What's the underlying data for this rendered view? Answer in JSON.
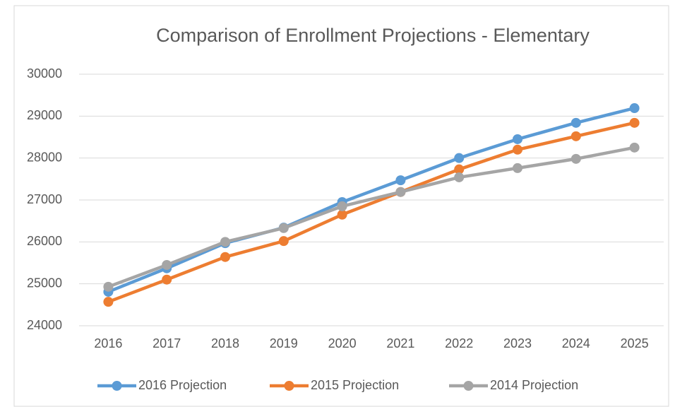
{
  "chart_data": {
    "type": "line",
    "title": "Comparison of Enrollment Projections - Elementary",
    "categories": [
      "2016",
      "2017",
      "2018",
      "2019",
      "2020",
      "2021",
      "2022",
      "2023",
      "2024",
      "2025"
    ],
    "series": [
      {
        "name": "2016 Projection",
        "color": "#5b9bd5",
        "values": [
          24810,
          25370,
          25970,
          26340,
          26950,
          27470,
          28000,
          28450,
          28840,
          29190
        ]
      },
      {
        "name": "2015 Projection",
        "color": "#ed7d31",
        "values": [
          24570,
          25100,
          25640,
          26020,
          26650,
          27190,
          27730,
          28200,
          28520,
          28840
        ]
      },
      {
        "name": "2014 Projection",
        "color": "#a5a5a5",
        "values": [
          24930,
          25450,
          26000,
          26330,
          26850,
          27190,
          27540,
          27760,
          27980,
          28250
        ]
      }
    ],
    "ylim": [
      24000,
      30000
    ],
    "yticks": [
      24000,
      25000,
      26000,
      27000,
      28000,
      29000,
      30000
    ],
    "grid": true,
    "legend": "bottom"
  }
}
